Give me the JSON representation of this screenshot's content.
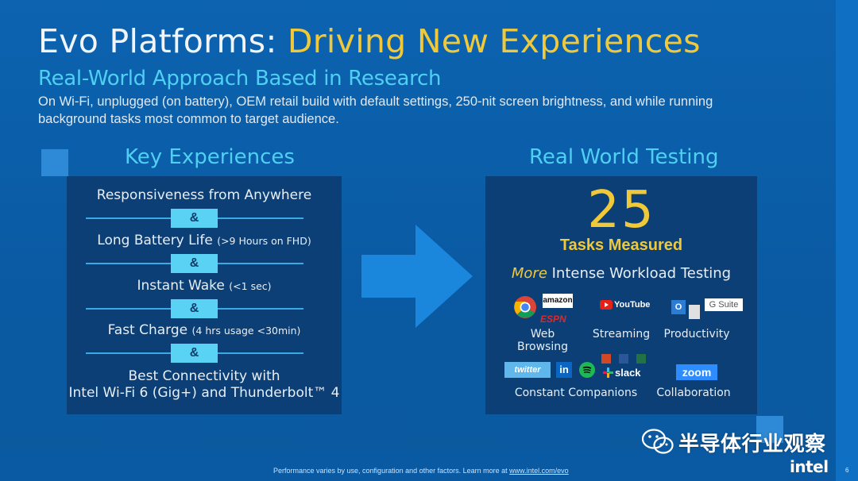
{
  "title": {
    "part1": "Evo Platforms: ",
    "part2": "Driving New Experiences"
  },
  "subtitle": "Real-World Approach Based in Research",
  "description": "On Wi-Fi, unplugged (on battery), OEM retail build with default settings, 250-nit screen brightness, and while running background tasks most common to target audience.",
  "key_experiences": {
    "heading": "Key Experiences",
    "separator": "&",
    "items": [
      {
        "main": "Responsiveness from Anywhere",
        "note": ""
      },
      {
        "main": "Long Battery Life",
        "note": "(>9 Hours on FHD)"
      },
      {
        "main": "Instant Wake",
        "note": "(<1 sec)"
      },
      {
        "main": "Fast Charge",
        "note": "(4 hrs usage <30min)"
      },
      {
        "main": "Best Connectivity with",
        "line2": "Intel Wi-Fi 6 (Gig+) and Thunderbolt™ 4"
      }
    ]
  },
  "real_world_testing": {
    "heading": "Real World Testing",
    "count": "25",
    "count_label": "Tasks Measured",
    "workload_more": "More",
    "workload_rest": " Intense Workload Testing",
    "categories": {
      "web_browsing": "Web Browsing",
      "streaming": "Streaming",
      "productivity": "Productivity",
      "constant_companions": "Constant Companions",
      "collaboration": "Collaboration"
    },
    "logos": {
      "amazon": "amazon",
      "espn": "ESPN",
      "youtube": "YouTube",
      "gsuite": "G Suite",
      "office": "Office",
      "twitter": "twitter",
      "linkedin": "in",
      "slack": "slack",
      "zoom": "zoom"
    }
  },
  "footer": {
    "note": "Performance varies by use, configuration and other factors.  Learn more at ",
    "link": "www.intel.com/evo",
    "brand": "intel",
    "page": "6"
  },
  "watermark": "半导体行业观察",
  "colors": {
    "accent_yellow": "#f0c93a",
    "accent_cyan": "#4fd0f3",
    "panel": "#0b3f76"
  }
}
